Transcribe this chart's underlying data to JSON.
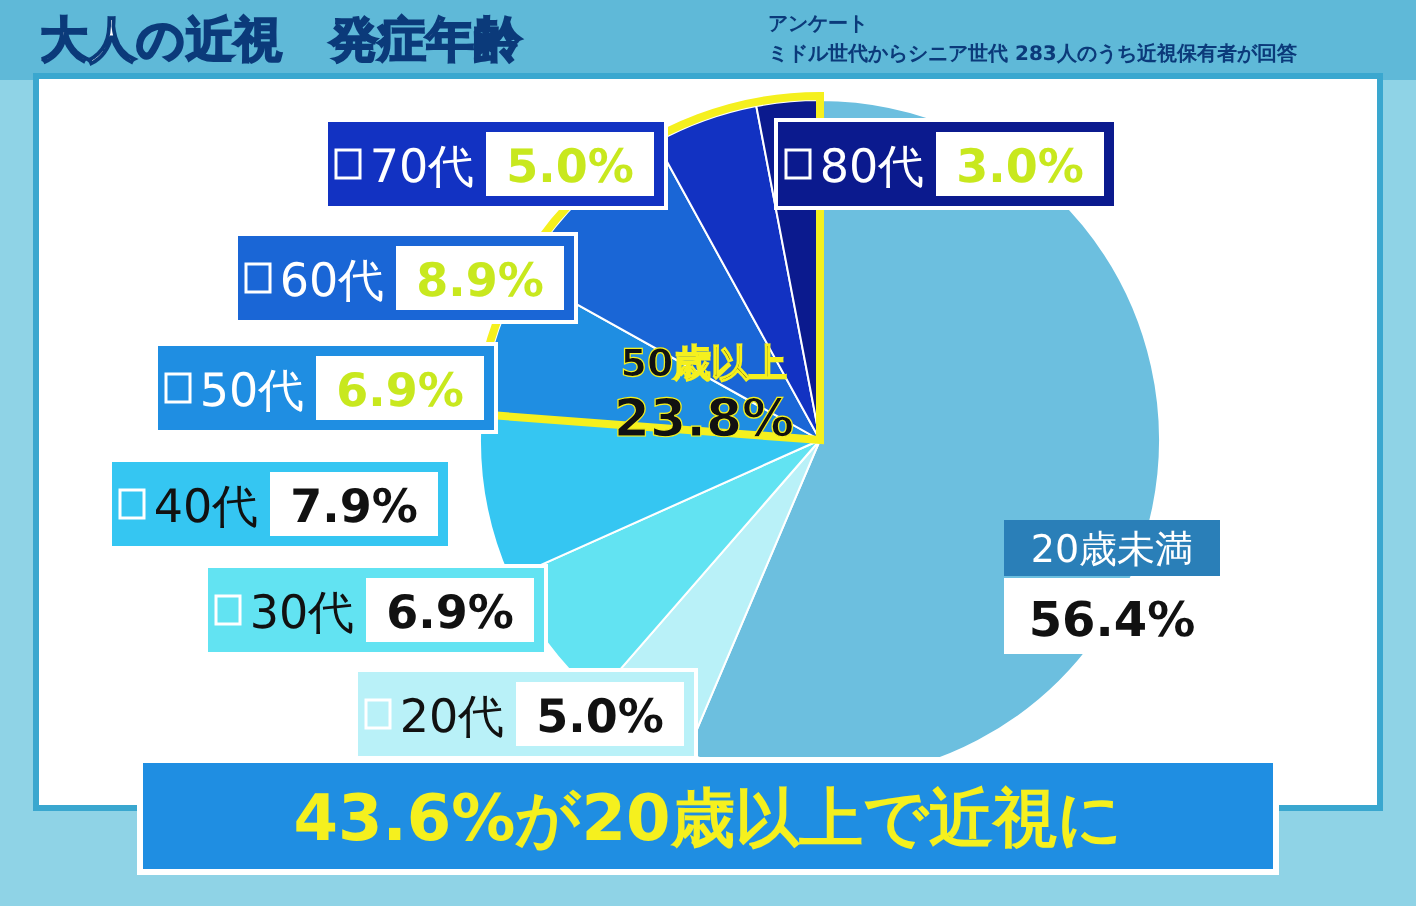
{
  "chart_data": {
    "type": "pie",
    "title": "大人の近視　発症年齢",
    "subtitle": "ミドル世代からシニア世代 283人のうち近視保有者が回答",
    "categories": [
      "20歳未満",
      "20代",
      "30代",
      "40代",
      "50代",
      "60代",
      "70代",
      "80代"
    ],
    "values": [
      56.4,
      5.0,
      6.9,
      7.9,
      6.9,
      8.9,
      5.0,
      3.0
    ],
    "value_labels": [
      "56.4%",
      "5.0%",
      "6.9%",
      "7.9%",
      "6.9%",
      "8.9%",
      "5.0%",
      "3.0%"
    ],
    "colors": [
      "#6cbfdf",
      "#b9f1f8",
      "#62e3f2",
      "#35c6f2",
      "#1f8ee2",
      "#1a66d6",
      "#1232c2",
      "#0b1a8e"
    ],
    "annotations": [
      "アンケート",
      "50歳以上\n23.8%",
      "43.6%が20歳以上で近視に"
    ],
    "legend": "left"
  }
}
